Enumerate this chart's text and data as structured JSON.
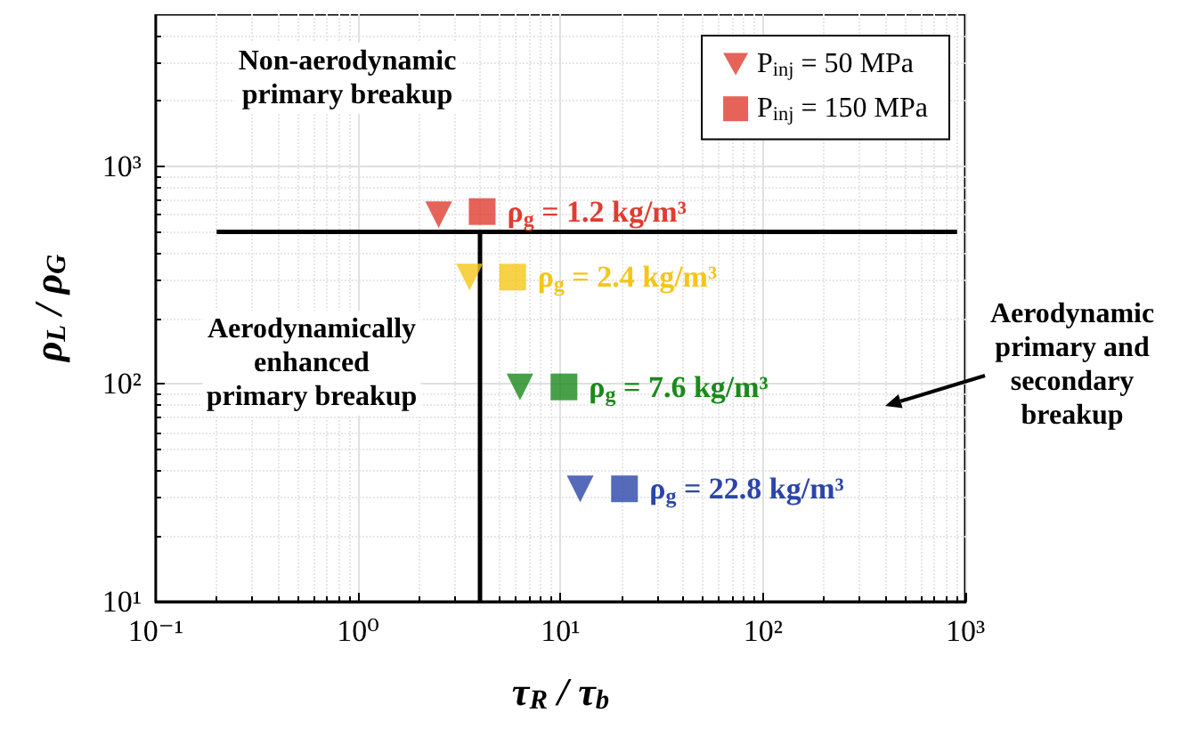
{
  "chart_data": {
    "type": "scatter",
    "xlabel": "τ$_{R}$ / τ$_{b}$",
    "ylabel": "ρ$_{L}$ / ρ$_{G}$",
    "log": "xy",
    "xlim": [
      0.1,
      1000
    ],
    "ylim": [
      10,
      5000
    ],
    "xticks": [
      {
        "value": 0.1,
        "label": "10⁻¹"
      },
      {
        "value": 1,
        "label": "10⁰"
      },
      {
        "value": 10,
        "label": "10¹"
      },
      {
        "value": 100,
        "label": "10²"
      },
      {
        "value": 1000,
        "label": "10³"
      }
    ],
    "yticks": [
      {
        "value": 10,
        "label": "10¹"
      },
      {
        "value": 100,
        "label": "10²"
      },
      {
        "value": 1000,
        "label": "10³"
      }
    ],
    "grid": true,
    "legend": "top right",
    "series": [
      {
        "name": "P$_{inj}$ = 50 MPa",
        "marker": "triangle",
        "color": "#e03c31",
        "x": [
          2.5,
          3.55,
          6.3,
          12.5
        ],
        "values": [
          600,
          310,
          97,
          33
        ],
        "colors": [
          "#e03c31",
          "#f5c518",
          "#1a8a1a",
          "#2b45a8"
        ]
      },
      {
        "name": "P$_{inj}$ = 150 MPa",
        "marker": "square",
        "color": "#e03c31",
        "x": [
          4.1,
          5.8,
          10.4,
          20.7
        ],
        "values": [
          620,
          310,
          97,
          33
        ],
        "colors": [
          "#e03c31",
          "#f5c518",
          "#1a8a1a",
          "#2b45a8"
        ]
      },
      {
        "type": "line",
        "color": "#000000",
        "marker": "none",
        "x": [
          0.2,
          910
        ],
        "values": [
          500,
          500
        ]
      },
      {
        "type": "line",
        "color": "#000000",
        "marker": "none",
        "x": [
          4,
          4
        ],
        "values": [
          500,
          10
        ]
      }
    ],
    "annotations": [
      {
        "text": "ρ$_{g}$ = 1.2 kg/m³",
        "x": 4.1,
        "y": 620
      },
      {
        "text": "ρ$_{g}$ = 2.4 kg/m³",
        "x": 5.8,
        "y": 310
      },
      {
        "text": "ρ$_{g}$ = 7.6 kg/m³",
        "x": 10.4,
        "y": 97
      },
      {
        "text": "ρ$_{g}$ = 22.8 kg/m³",
        "x": 20.7,
        "y": 33
      },
      "Non-aerodynamic\nprimary breakup",
      "Aerodynamically\nenhanced\nprimary breakup",
      "Aerodynamic\nprimary and\nsecondary\nbreakup"
    ]
  }
}
